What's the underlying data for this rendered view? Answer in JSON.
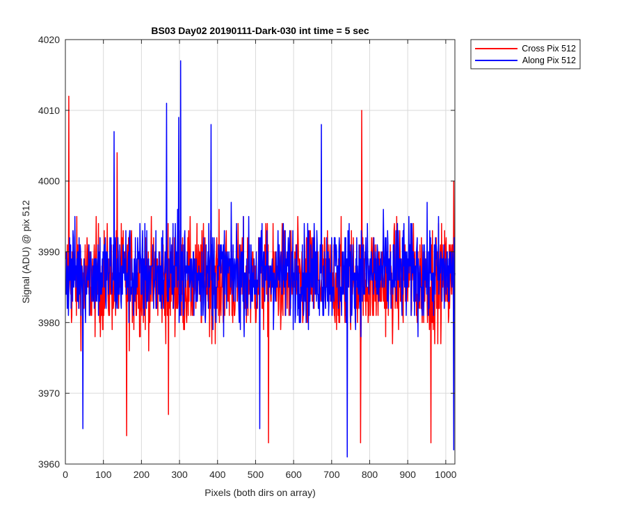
{
  "chart_data": {
    "type": "line",
    "title": "BS03 Day02 20190111-Dark-030 int time = 5 sec",
    "xlabel": "Pixels (both dirs on array)",
    "ylabel": "Signal (ADU) @ pix 512",
    "xlim": [
      0,
      1024
    ],
    "ylim": [
      3960,
      4020
    ],
    "xticks": [
      0,
      100,
      200,
      300,
      400,
      500,
      600,
      700,
      800,
      900,
      1000
    ],
    "yticks": [
      3960,
      3970,
      3980,
      3990,
      4000,
      4010,
      4020
    ],
    "grid": true,
    "legend_position": "outside-top-right",
    "series": [
      {
        "name": "Cross Pix 512",
        "color": "#ff0000",
        "mean": 3986,
        "spread": 6.5,
        "features": [
          {
            "x": 8,
            "y": 4012
          },
          {
            "x": 778,
            "y": 4010
          },
          {
            "x": 160,
            "y": 3964
          },
          {
            "x": 533,
            "y": 3963
          },
          {
            "x": 1020,
            "y": 3962
          },
          {
            "x": 1020,
            "y": 4000
          },
          {
            "x": 270,
            "y": 3967
          },
          {
            "x": 775,
            "y": 3963
          },
          {
            "x": 960,
            "y": 3963
          },
          {
            "x": 135,
            "y": 4004
          }
        ]
      },
      {
        "name": "Along Pix 512",
        "color": "#0000ff",
        "mean": 3987,
        "spread": 6.0,
        "features": [
          {
            "x": 302,
            "y": 4017
          },
          {
            "x": 265,
            "y": 4011
          },
          {
            "x": 297,
            "y": 4009
          },
          {
            "x": 740,
            "y": 3961
          },
          {
            "x": 45,
            "y": 3965
          },
          {
            "x": 510,
            "y": 3965
          },
          {
            "x": 382,
            "y": 4008
          },
          {
            "x": 672,
            "y": 4008
          },
          {
            "x": 127,
            "y": 4007
          },
          {
            "x": 1020,
            "y": 3962
          }
        ]
      }
    ]
  }
}
